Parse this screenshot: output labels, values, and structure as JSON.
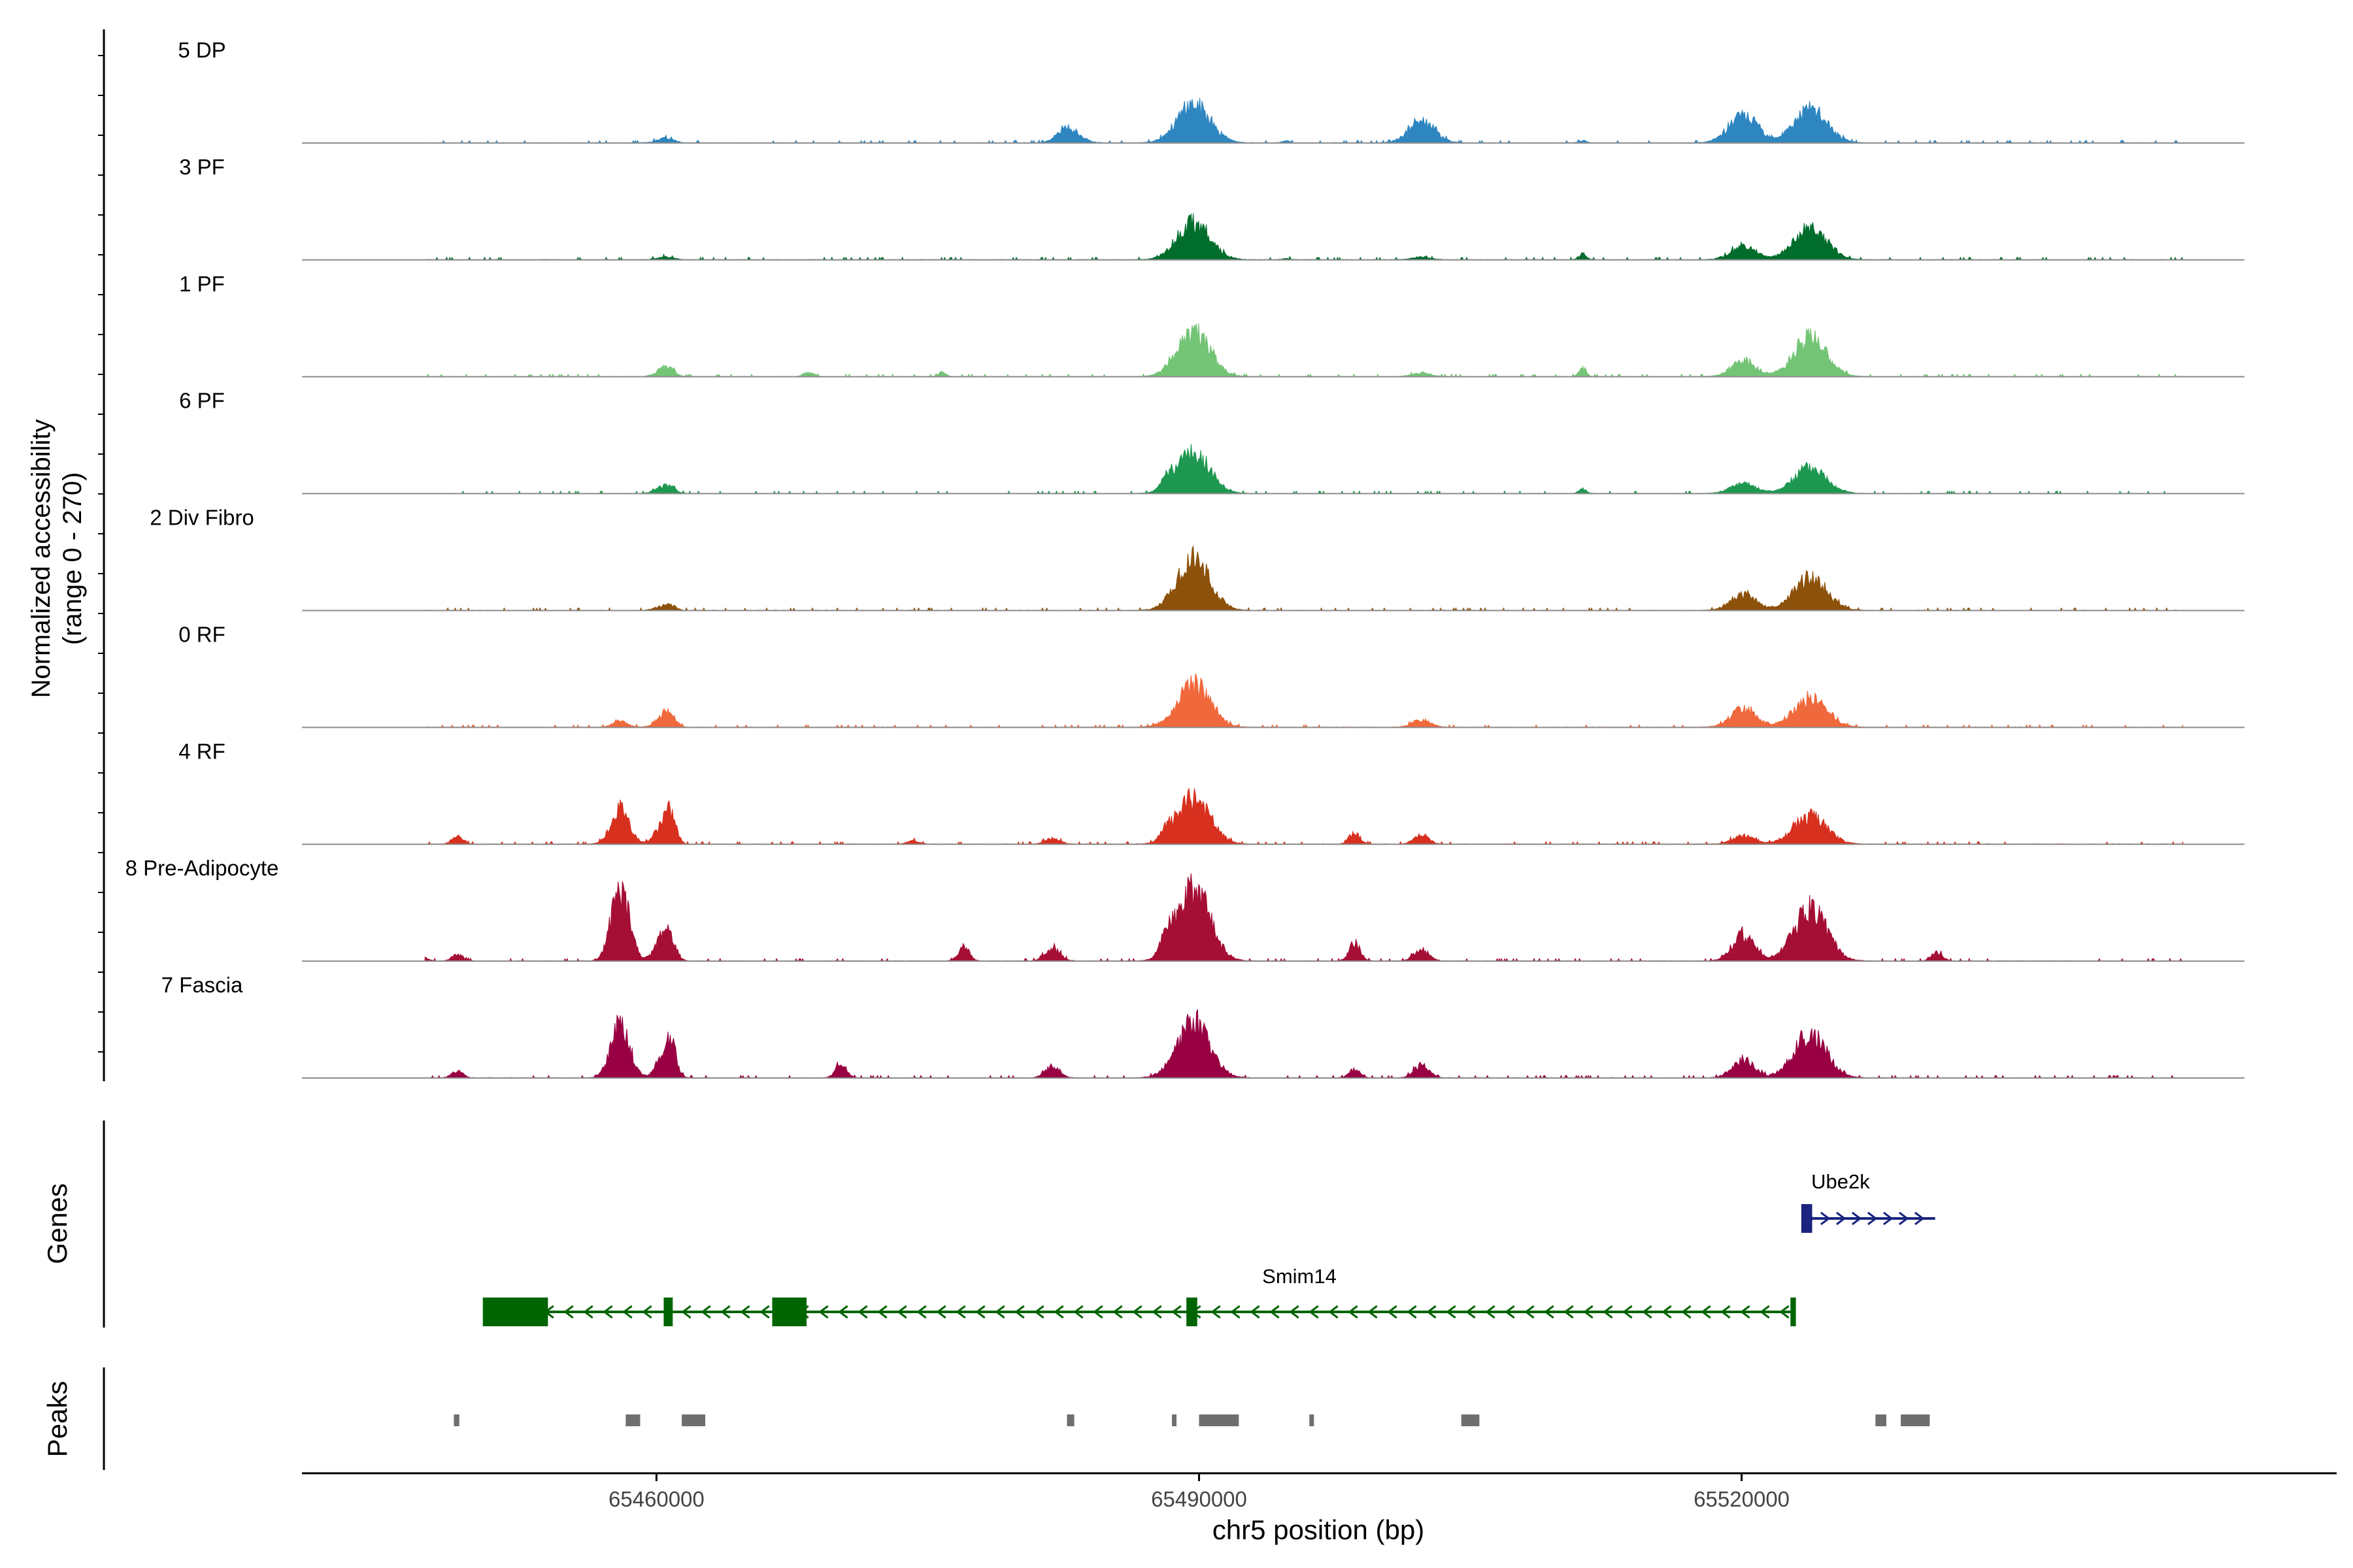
{
  "chart_data": {
    "type": "area",
    "title": "",
    "xlabel": "chr5 position (bp)",
    "ylabel_line1": "Normalized accessibility",
    "ylabel_line2": "(range 0 - 270)",
    "ylim": [
      0,
      270
    ],
    "xlim": [
      65440400,
      65552900
    ],
    "x_ticks": [
      65460000,
      65490000,
      65520000
    ],
    "x_tick_labels": [
      "65460000",
      "65490000",
      "65520000"
    ],
    "series": [
      {
        "name": "5 DP",
        "color": "#2E86C1",
        "peaks": [
          [
            65460300,
            10,
            400
          ],
          [
            65460800,
            7,
            300
          ],
          [
            65482800,
            45,
            600
          ],
          [
            65489700,
            120,
            900
          ],
          [
            65494800,
            6,
            200
          ],
          [
            65502300,
            70,
            700
          ],
          [
            65511200,
            7,
            200
          ],
          [
            65520100,
            85,
            800
          ],
          [
            65523800,
            105,
            900
          ]
        ]
      },
      {
        "name": "3 PF",
        "color": "#006D2C",
        "peaks": [
          [
            65460300,
            6,
            400
          ],
          [
            65460800,
            5,
            300
          ],
          [
            65489700,
            115,
            900
          ],
          [
            65494800,
            4,
            200
          ],
          [
            65502300,
            8,
            500
          ],
          [
            65511200,
            18,
            200
          ],
          [
            65520100,
            40,
            700
          ],
          [
            65523800,
            95,
            900
          ]
        ]
      },
      {
        "name": "1 PF",
        "color": "#74C476",
        "peaks": [
          [
            65460300,
            20,
            400
          ],
          [
            65460800,
            18,
            300
          ],
          [
            65468400,
            12,
            300
          ],
          [
            65475800,
            14,
            200
          ],
          [
            65489700,
            135,
            900
          ],
          [
            65502300,
            12,
            500
          ],
          [
            65511200,
            28,
            200
          ],
          [
            65520100,
            45,
            700
          ],
          [
            65523800,
            120,
            900
          ]
        ]
      },
      {
        "name": "6 PF",
        "color": "#1E9850",
        "peaks": [
          [
            65460300,
            18,
            400
          ],
          [
            65460800,
            15,
            300
          ],
          [
            65488200,
            30,
            300
          ],
          [
            65489700,
            125,
            900
          ],
          [
            65511200,
            14,
            200
          ],
          [
            65520100,
            30,
            700
          ],
          [
            65523800,
            80,
            900
          ]
        ]
      },
      {
        "name": "2 Div Fibro",
        "color": "#8C510A",
        "peaks": [
          [
            65460300,
            12,
            400
          ],
          [
            65460800,
            10,
            300
          ],
          [
            65489700,
            155,
            900
          ],
          [
            65520100,
            48,
            700
          ],
          [
            65523800,
            100,
            900
          ]
        ]
      },
      {
        "name": "0 RF",
        "color": "#F0693C",
        "peaks": [
          [
            65458000,
            18,
            400
          ],
          [
            65460300,
            30,
            400
          ],
          [
            65460800,
            28,
            300
          ],
          [
            65489700,
            130,
            900
          ],
          [
            65502300,
            22,
            500
          ],
          [
            65520100,
            55,
            700
          ],
          [
            65523800,
            90,
            900
          ]
        ]
      },
      {
        "name": "4 RF",
        "color": "#D7301F",
        "peaks": [
          [
            65449000,
            25,
            300
          ],
          [
            65458000,
            110,
            500
          ],
          [
            65460300,
            55,
            400
          ],
          [
            65460800,
            75,
            300
          ],
          [
            65474200,
            10,
            300
          ],
          [
            65481900,
            18,
            400
          ],
          [
            65488200,
            25,
            300
          ],
          [
            65489700,
            140,
            900
          ],
          [
            65498600,
            35,
            300
          ],
          [
            65502300,
            28,
            400
          ],
          [
            65520100,
            25,
            600
          ],
          [
            65523800,
            85,
            900
          ]
        ]
      },
      {
        "name": "8 Pre-Adipocyte",
        "color": "#A50F35",
        "peaks": [
          [
            65447000,
            15,
            300
          ],
          [
            65449000,
            20,
            300
          ],
          [
            65458000,
            220,
            500
          ],
          [
            65460300,
            70,
            400
          ],
          [
            65460800,
            50,
            300
          ],
          [
            65477000,
            45,
            300
          ],
          [
            65481900,
            40,
            400
          ],
          [
            65488200,
            60,
            300
          ],
          [
            65489700,
            220,
            900
          ],
          [
            65498600,
            55,
            300
          ],
          [
            65502300,
            35,
            400
          ],
          [
            65520100,
            80,
            600
          ],
          [
            65523800,
            160,
            900
          ],
          [
            65530800,
            25,
            300
          ]
        ]
      },
      {
        "name": "7 Fascia",
        "color": "#980043",
        "peaks": [
          [
            65449000,
            22,
            300
          ],
          [
            65458000,
            175,
            500
          ],
          [
            65460300,
            55,
            400
          ],
          [
            65460800,
            90,
            300
          ],
          [
            65470200,
            45,
            300
          ],
          [
            65481900,
            35,
            400
          ],
          [
            65489700,
            165,
            900
          ],
          [
            65498600,
            25,
            300
          ],
          [
            65502300,
            40,
            400
          ],
          [
            65520100,
            55,
            600
          ],
          [
            65523800,
            130,
            900
          ]
        ]
      }
    ],
    "genes_label": "Genes",
    "genes": [
      {
        "name": "Ube2k",
        "strand": "+",
        "color": "#1A237E",
        "start": 65523300,
        "end": 65530700,
        "exons": [
          [
            65523300,
            65523900
          ]
        ]
      },
      {
        "name": "Smim14",
        "strand": "-",
        "color": "#006400",
        "start": 65450400,
        "end": 65523000,
        "exons": [
          [
            65450400,
            65454000
          ],
          [
            65460400,
            65460900
          ],
          [
            65466400,
            65468300
          ],
          [
            65489300,
            65489900
          ],
          [
            65522700,
            65523000
          ]
        ]
      }
    ],
    "peaks_label": "Peaks",
    "peak_regions": [
      [
        65448800,
        65449100
      ],
      [
        65458300,
        65459100
      ],
      [
        65461400,
        65462700
      ],
      [
        65482700,
        65483100
      ],
      [
        65488500,
        65488700
      ],
      [
        65490000,
        65492200
      ],
      [
        65496100,
        65496300
      ],
      [
        65504500,
        65505500
      ],
      [
        65527400,
        65528000
      ],
      [
        65528800,
        65530400
      ]
    ]
  }
}
